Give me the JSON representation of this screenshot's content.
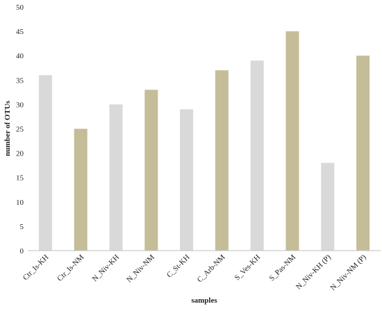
{
  "chart_data": {
    "type": "bar",
    "xlabel": "samples",
    "ylabel": "number of OTUs",
    "ylim": [
      0,
      50
    ],
    "yticks": [
      0,
      5,
      10,
      15,
      20,
      25,
      30,
      35,
      40,
      45,
      50
    ],
    "categories": [
      "Ctr_Is-KH",
      "Ctr_Is-NM",
      "N_Niv-KH",
      "N_Niv-NM",
      "C_St-KH",
      "C_Arb-NM",
      "S_Ves-KH",
      "S_Pas-NM",
      "N_Niv-KH (P)",
      "N_Niv-NM (P)"
    ],
    "values": [
      36,
      25,
      30,
      33,
      29,
      37,
      39,
      45,
      18,
      40
    ],
    "bar_colors": [
      "#d9d9d9",
      "#c4bd97",
      "#d9d9d9",
      "#c4bd97",
      "#d9d9d9",
      "#c4bd97",
      "#d9d9d9",
      "#c4bd97",
      "#d9d9d9",
      "#c4bd97"
    ],
    "grid": false,
    "legend": "none"
  }
}
